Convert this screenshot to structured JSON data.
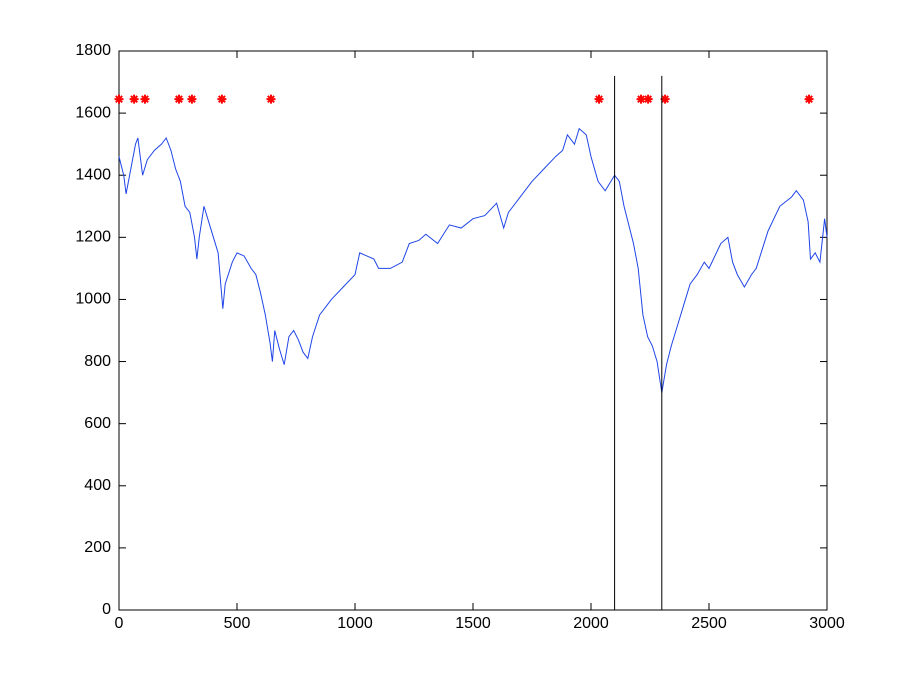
{
  "chart_data": {
    "type": "line",
    "xlim": [
      0,
      3000
    ],
    "ylim": [
      0,
      1800
    ],
    "xticks": [
      0,
      500,
      1000,
      1500,
      2000,
      2500,
      3000
    ],
    "yticks": [
      0,
      200,
      400,
      600,
      800,
      1000,
      1200,
      1400,
      1600,
      1800
    ],
    "grid": false,
    "series": [
      {
        "color": "#1f45e8",
        "marker": "none",
        "x": [
          0,
          20,
          30,
          50,
          70,
          80,
          100,
          120,
          150,
          180,
          200,
          220,
          240,
          260,
          280,
          300,
          320,
          330,
          340,
          360,
          380,
          400,
          420,
          430,
          440,
          450,
          480,
          500,
          530,
          560,
          580,
          600,
          620,
          640,
          650,
          660,
          680,
          700,
          720,
          740,
          760,
          780,
          800,
          820,
          850,
          880,
          900,
          950,
          1000,
          1020,
          1050,
          1080,
          1100,
          1150,
          1200,
          1230,
          1270,
          1300,
          1350,
          1400,
          1450,
          1500,
          1550,
          1600,
          1630,
          1650,
          1700,
          1750,
          1800,
          1850,
          1880,
          1900,
          1930,
          1950,
          1980,
          2000,
          2030,
          2060,
          2100,
          2120,
          2140,
          2160,
          2180,
          2200,
          2220,
          2240,
          2260,
          2280,
          2300,
          2320,
          2340,
          2360,
          2380,
          2400,
          2420,
          2450,
          2480,
          2500,
          2550,
          2580,
          2600,
          2620,
          2650,
          2680,
          2700,
          2750,
          2800,
          2850,
          2870,
          2900,
          2920,
          2930,
          2950,
          2970,
          2990,
          3000
        ],
        "values": [
          1460,
          1400,
          1340,
          1420,
          1500,
          1520,
          1400,
          1450,
          1480,
          1500,
          1520,
          1480,
          1420,
          1380,
          1300,
          1280,
          1200,
          1130,
          1200,
          1300,
          1250,
          1200,
          1150,
          1060,
          970,
          1050,
          1120,
          1150,
          1140,
          1100,
          1080,
          1020,
          950,
          860,
          800,
          900,
          840,
          790,
          880,
          900,
          870,
          830,
          810,
          880,
          950,
          980,
          1000,
          1040,
          1080,
          1150,
          1140,
          1130,
          1100,
          1100,
          1120,
          1180,
          1190,
          1210,
          1180,
          1240,
          1230,
          1260,
          1270,
          1310,
          1230,
          1280,
          1330,
          1380,
          1420,
          1460,
          1480,
          1530,
          1500,
          1550,
          1530,
          1460,
          1380,
          1350,
          1400,
          1380,
          1300,
          1240,
          1180,
          1100,
          950,
          880,
          850,
          800,
          700,
          790,
          850,
          900,
          950,
          1000,
          1050,
          1080,
          1120,
          1100,
          1180,
          1200,
          1120,
          1080,
          1040,
          1080,
          1100,
          1220,
          1300,
          1330,
          1350,
          1320,
          1250,
          1130,
          1150,
          1120,
          1260,
          1200
        ]
      },
      {
        "color": "#ff0000",
        "marker": "*",
        "x": [
          0,
          64,
          110,
          254,
          309,
          436,
          644,
          2034,
          2212,
          2242,
          2314,
          2924
        ],
        "values": [
          1645,
          1645,
          1645,
          1645,
          1645,
          1645,
          1645,
          1645,
          1645,
          1645,
          1645,
          1645
        ]
      },
      {
        "color": "#000000",
        "marker": "none",
        "x": [
          2100,
          2100
        ],
        "values": [
          0,
          1720
        ]
      },
      {
        "color": "#000000",
        "marker": "none",
        "x": [
          2300,
          2300
        ],
        "values": [
          0,
          1720
        ]
      }
    ]
  }
}
